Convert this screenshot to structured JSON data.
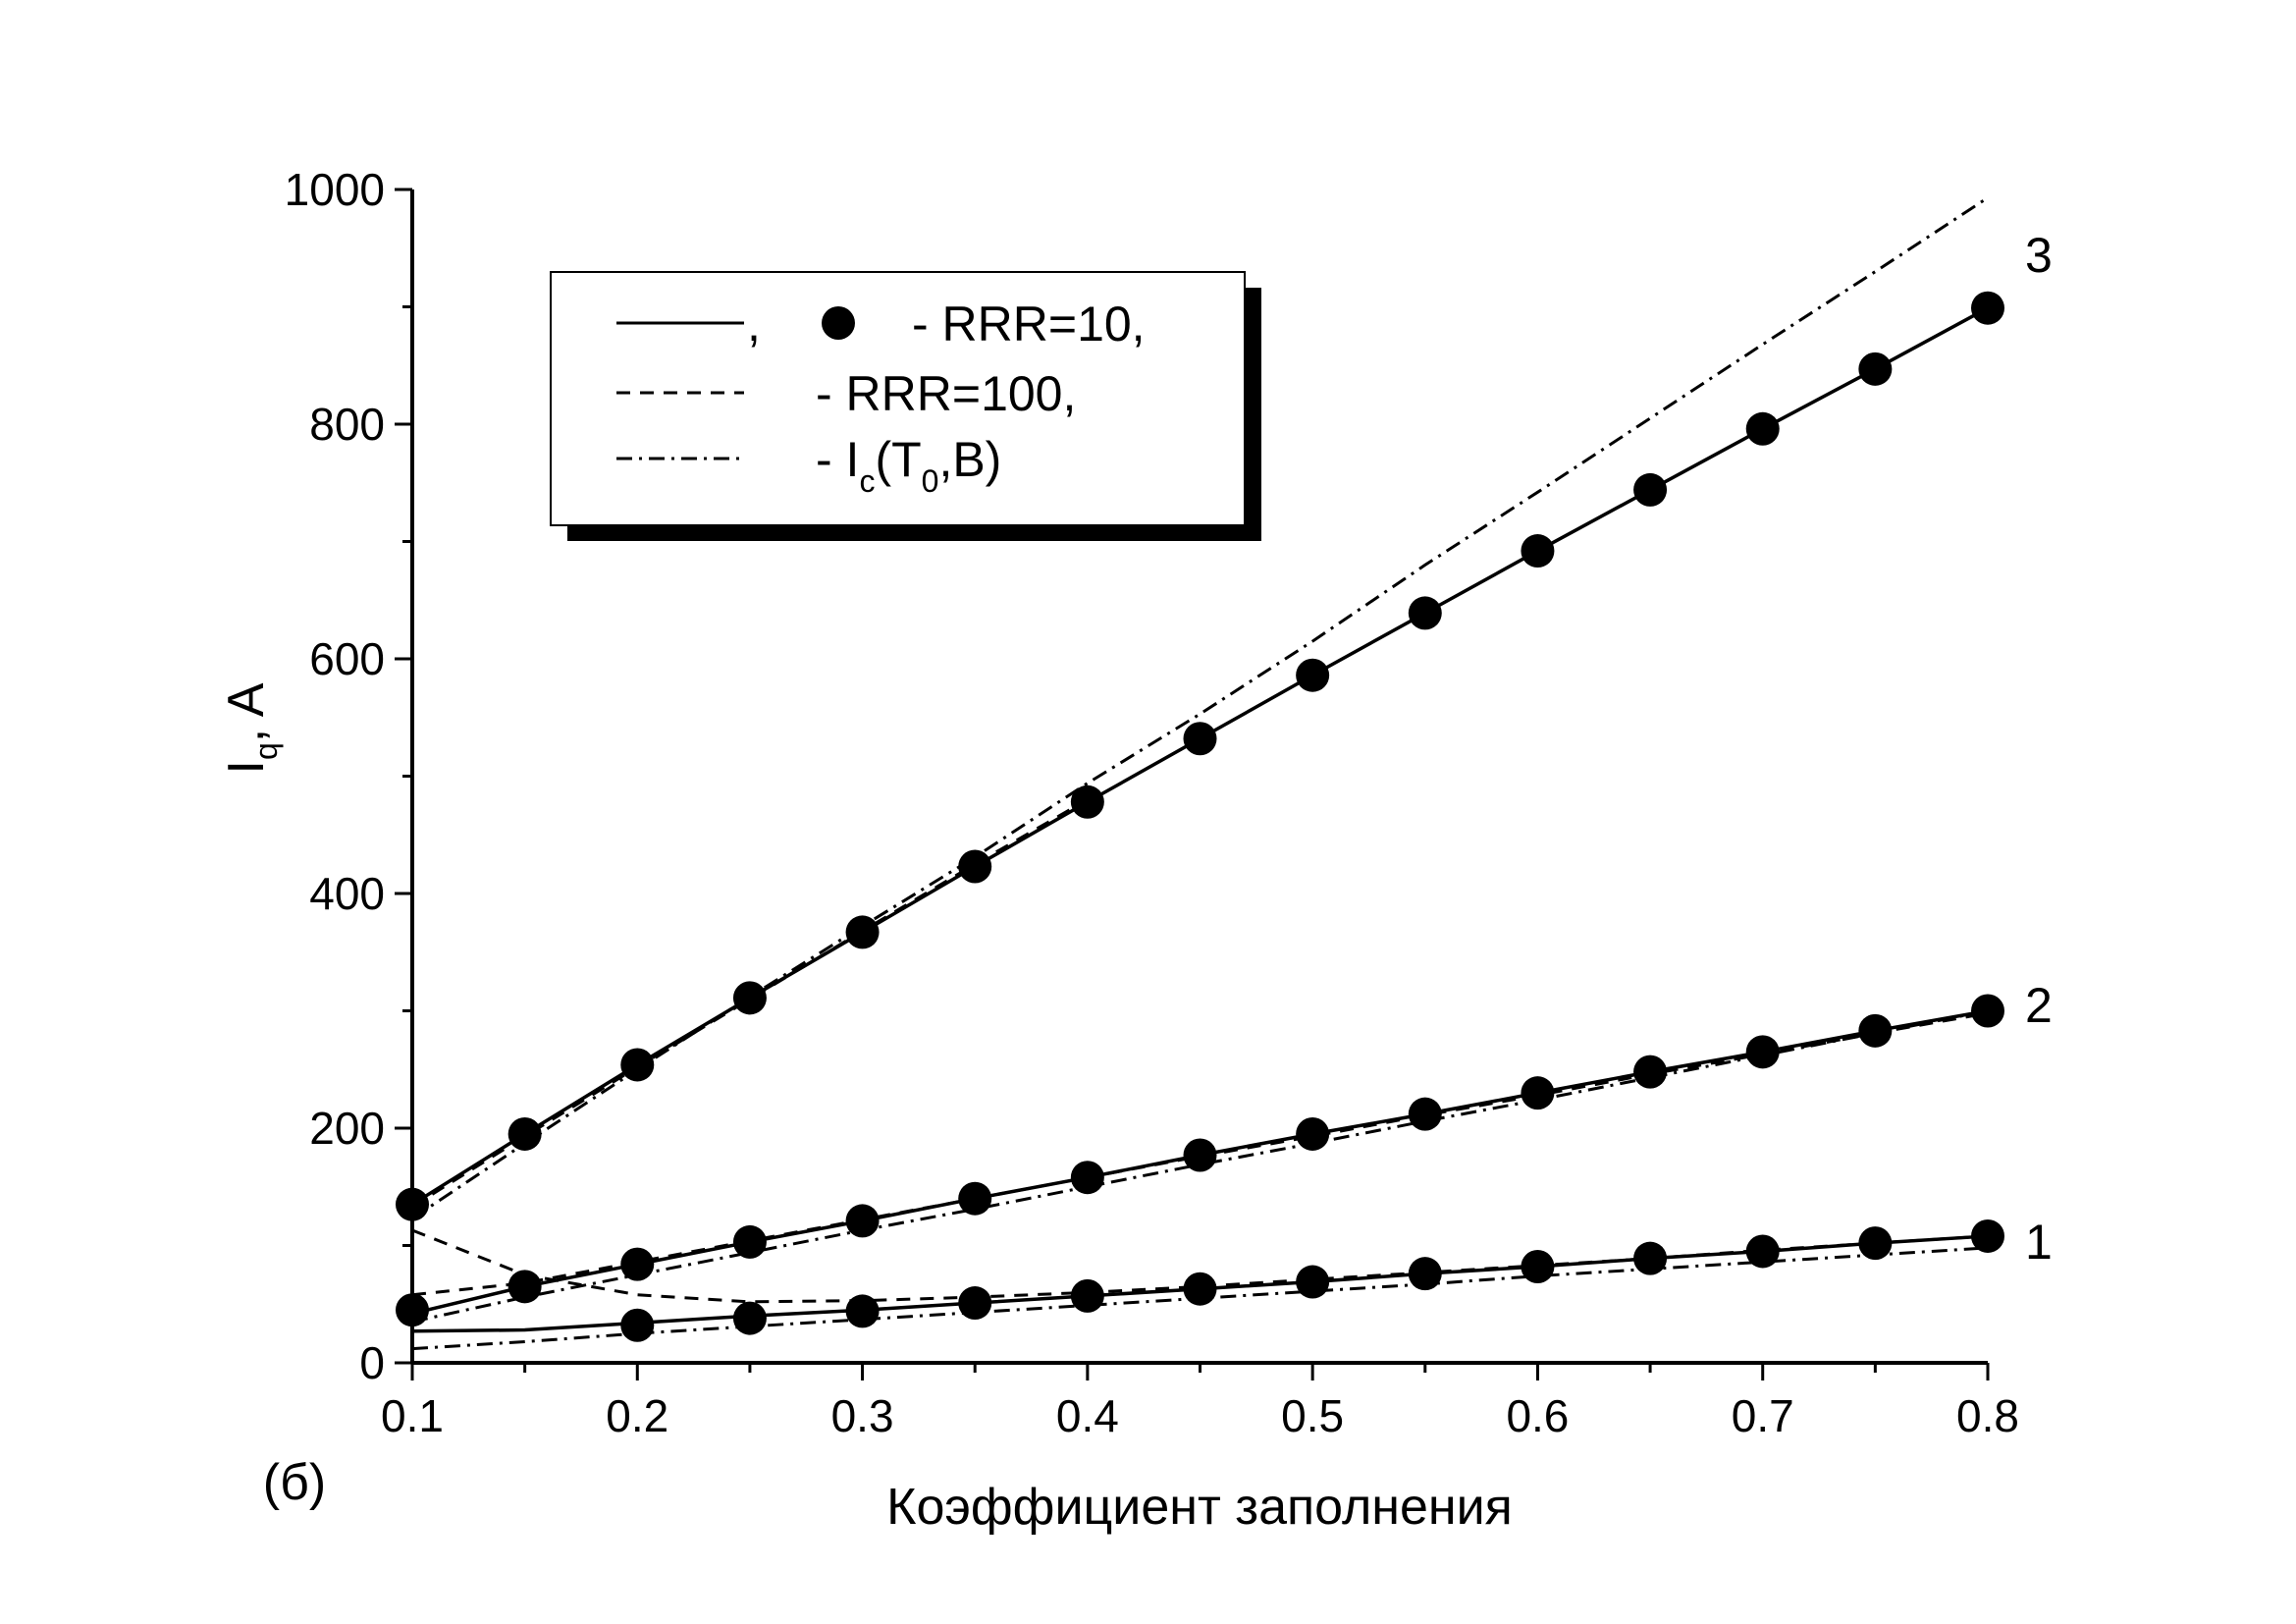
{
  "chart_data": {
    "type": "line",
    "panel_label": "(б)",
    "xlabel": "Коэффициент заполнения",
    "ylabel": {
      "main": "I",
      "sub": "q",
      "rest": ", A"
    },
    "xlim": [
      0.1,
      0.8
    ],
    "ylim": [
      0,
      1000
    ],
    "x_ticks": [
      0.1,
      0.2,
      0.3,
      0.4,
      0.5,
      0.6,
      0.7,
      0.8
    ],
    "x_tick_labels": [
      "0.1",
      "0.2",
      "0.3",
      "0.4",
      "0.5",
      "0.6",
      "0.7",
      "0.8"
    ],
    "y_ticks": [
      0,
      200,
      400,
      600,
      800,
      1000
    ],
    "y_tick_labels": [
      "0",
      "200",
      "400",
      "600",
      "800",
      "1000"
    ],
    "grid": false,
    "legend": {
      "placement": "top-left",
      "entries": [
        {
          "style": "solid-and-marker",
          "comma": ",",
          "text": "- RRR=10,"
        },
        {
          "style": "dashed",
          "text": "- RRR=100,"
        },
        {
          "style": "dashdot",
          "text_prefix": "- I",
          "sub1": "c",
          "text_mid": "(T",
          "sub2": "0",
          "text_suffix": ",B)"
        }
      ]
    },
    "curve_labels": [
      "1",
      "2",
      "3"
    ],
    "groups": [
      {
        "label": "1",
        "rrr10_curve": {
          "x": [
            0.1,
            0.15,
            0.2,
            0.25,
            0.3,
            0.35,
            0.4,
            0.45,
            0.5,
            0.55,
            0.6,
            0.65,
            0.7,
            0.75,
            0.8
          ],
          "y": [
            27,
            28,
            34,
            40,
            45,
            51,
            57,
            63,
            69,
            76,
            82,
            89,
            95,
            102,
            108
          ]
        },
        "rrr10_points": {
          "x": [
            0.2,
            0.25,
            0.3,
            0.35,
            0.4,
            0.45,
            0.5,
            0.55,
            0.6,
            0.65,
            0.7,
            0.75,
            0.8
          ],
          "y": [
            32,
            38,
            44,
            51,
            57,
            63,
            69,
            76,
            82,
            89,
            95,
            102,
            108
          ]
        },
        "rrr100": {
          "x": [
            0.1,
            0.15,
            0.2,
            0.25,
            0.3,
            0.35,
            0.4,
            0.45,
            0.5,
            0.55,
            0.6,
            0.65,
            0.7,
            0.75,
            0.8
          ],
          "y": [
            113,
            75,
            58,
            52,
            53,
            56,
            60,
            65,
            71,
            77,
            83,
            89,
            96,
            102,
            108
          ]
        },
        "ic": {
          "x": [
            0.1,
            0.15,
            0.2,
            0.25,
            0.3,
            0.35,
            0.4,
            0.45,
            0.5,
            0.55,
            0.6,
            0.65,
            0.7,
            0.75,
            0.8
          ],
          "y": [
            12,
            18,
            25,
            31,
            37,
            43,
            49,
            55,
            61,
            67,
            74,
            80,
            86,
            92,
            98
          ]
        }
      },
      {
        "label": "2",
        "rrr10_curve": {
          "x": [
            0.1,
            0.15,
            0.2,
            0.25,
            0.3,
            0.35,
            0.4,
            0.45,
            0.5,
            0.55,
            0.6,
            0.65,
            0.7,
            0.75,
            0.8
          ],
          "y": [
            42,
            65,
            84,
            103,
            121,
            140,
            158,
            177,
            195,
            212,
            230,
            248,
            265,
            283,
            300
          ]
        },
        "rrr10_points": {
          "x": [
            0.1,
            0.15,
            0.2,
            0.25,
            0.3,
            0.35,
            0.4,
            0.45,
            0.5,
            0.55,
            0.6,
            0.65,
            0.7,
            0.75,
            0.8
          ],
          "y": [
            45,
            65,
            84,
            103,
            121,
            140,
            158,
            177,
            195,
            212,
            230,
            248,
            265,
            283,
            300
          ]
        },
        "rrr100": {
          "x": [
            0.1,
            0.15,
            0.2,
            0.25,
            0.3,
            0.35,
            0.4,
            0.45,
            0.5,
            0.55,
            0.6,
            0.65,
            0.7,
            0.75,
            0.8
          ],
          "y": [
            58,
            68,
            86,
            104,
            122,
            140,
            158,
            176,
            193,
            211,
            228,
            246,
            263,
            281,
            298
          ]
        },
        "ic": {
          "x": [
            0.1,
            0.15,
            0.2,
            0.25,
            0.3,
            0.35,
            0.4,
            0.45,
            0.5,
            0.55,
            0.6,
            0.65,
            0.7,
            0.75,
            0.8
          ],
          "y": [
            35,
            56,
            75,
            94,
            113,
            131,
            150,
            169,
            187,
            206,
            224,
            243,
            262,
            281,
            300
          ]
        }
      },
      {
        "label": "3",
        "rrr10_curve": {
          "x": [
            0.1,
            0.15,
            0.2,
            0.25,
            0.3,
            0.35,
            0.4,
            0.45,
            0.5,
            0.55,
            0.6,
            0.65,
            0.7,
            0.75,
            0.8
          ],
          "y": [
            135,
            195,
            254,
            311,
            367,
            423,
            478,
            532,
            586,
            639,
            692,
            744,
            796,
            847,
            899
          ]
        },
        "rrr10_points": {
          "x": [
            0.1,
            0.15,
            0.2,
            0.25,
            0.3,
            0.35,
            0.4,
            0.45,
            0.5,
            0.55,
            0.6,
            0.65,
            0.7,
            0.75,
            0.8
          ],
          "y": [
            135,
            195,
            254,
            311,
            367,
            423,
            478,
            532,
            586,
            639,
            692,
            744,
            796,
            847,
            899
          ]
        },
        "rrr100": {
          "x": [
            0.1,
            0.15,
            0.2,
            0.25,
            0.3,
            0.35,
            0.4
          ],
          "y": [
            133,
            193,
            252,
            310,
            368,
            425,
            480
          ]
        },
        "ic": {
          "x": [
            0.1,
            0.15,
            0.2,
            0.25,
            0.3,
            0.35,
            0.4,
            0.45,
            0.5,
            0.55,
            0.6,
            0.65,
            0.7,
            0.75,
            0.8
          ],
          "y": [
            123,
            187,
            250,
            312,
            372,
            431,
            494,
            553,
            615,
            680,
            742,
            805,
            868,
            930,
            993
          ]
        }
      }
    ]
  }
}
